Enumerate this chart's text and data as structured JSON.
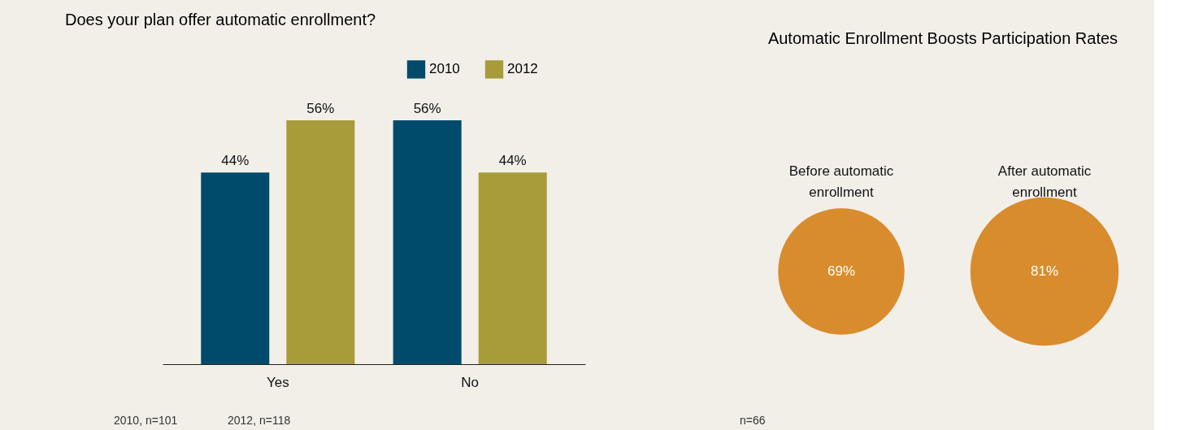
{
  "chart_data": [
    {
      "type": "bar",
      "title": "Does your plan offer automatic enrollment?",
      "categories": [
        "Yes",
        "No"
      ],
      "legend": "top right",
      "series": [
        {
          "name": "2010",
          "color": "#004b6b",
          "values": [
            44,
            56
          ],
          "value_labels": [
            "44%",
            "56%"
          ]
        },
        {
          "name": "2012",
          "color": "#a89b3a",
          "values": [
            56,
            44
          ],
          "value_labels": [
            "56%",
            "44%"
          ]
        }
      ],
      "annotations": [
        "2010, n=101",
        "2012, n=118"
      ]
    },
    {
      "type": "other",
      "title": "Automatic Enrollment Boosts Participation Rates",
      "categories": [
        "Before automatic enrollment",
        "After automatic enrollment"
      ],
      "values": [
        69,
        81
      ],
      "value_labels": [
        "69%",
        "81%"
      ],
      "colors": [
        "#d88c2d",
        "#d88c2d"
      ],
      "annotations": [
        "n=66"
      ]
    }
  ]
}
